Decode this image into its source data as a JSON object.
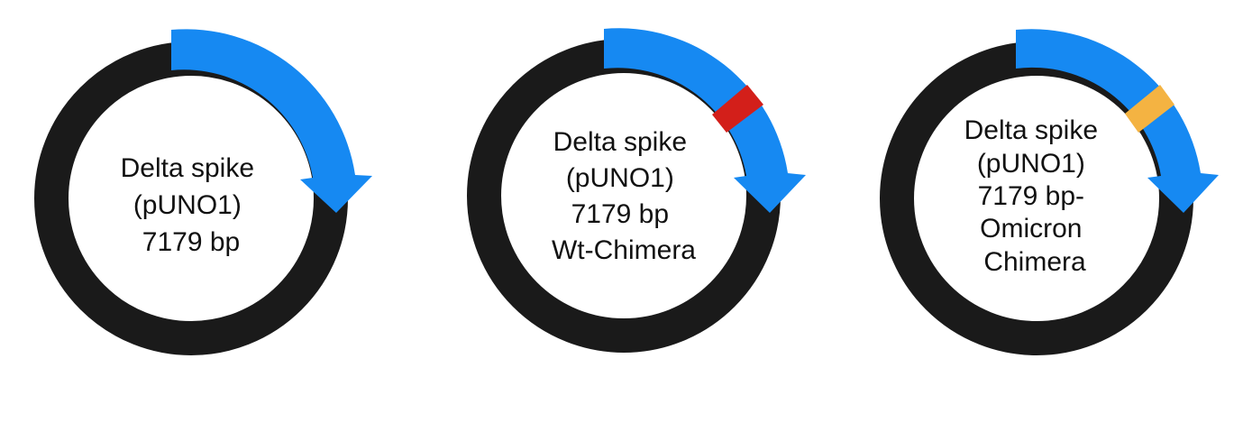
{
  "colors": {
    "backbone": "#1a1a1a",
    "spike": "#1689f2",
    "wt_insert": "#d31f1a",
    "omicron_insert": "#f4b342",
    "background": "#ffffff"
  },
  "plasmids": [
    {
      "id": "delta",
      "label_lines": [
        "Delta spike",
        "(pUNO1)",
        "7179 bp"
      ],
      "insert_color": ""
    },
    {
      "id": "wt-chimera",
      "label_lines": [
        "Delta spike",
        "(pUNO1)",
        "7179 bp",
        "Wt-Chimera"
      ],
      "insert_color": "#d31f1a"
    },
    {
      "id": "omicron-chimera",
      "label_lines": [
        "Delta spike",
        "(pUNO1)",
        "7179 bp-",
        "Omicron",
        "Chimera"
      ],
      "insert_color": "#f4b342"
    }
  ]
}
